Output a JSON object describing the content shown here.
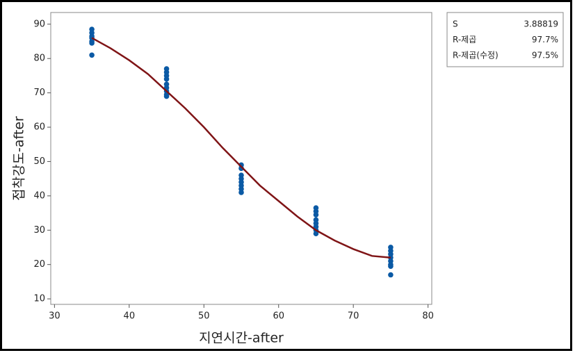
{
  "chart_data": {
    "type": "scatter",
    "x_label": "지연시간-after",
    "y_label": "접착강도-after",
    "xlim": [
      29.5,
      80.5
    ],
    "ylim": [
      8.4,
      93.4
    ],
    "xticks": [
      30,
      40,
      50,
      60,
      70,
      80
    ],
    "yticks": [
      10,
      20,
      30,
      40,
      50,
      60,
      70,
      80,
      90
    ],
    "series": [
      {
        "type": "scatter",
        "color": "#0b5aa5",
        "x": [
          35,
          35,
          35,
          35,
          35,
          35,
          35,
          45,
          45,
          45,
          45,
          45,
          45,
          45,
          45,
          45,
          55,
          55,
          55,
          55,
          55,
          55,
          55,
          55,
          65,
          65,
          65,
          65,
          65,
          65,
          65,
          65,
          75,
          75,
          75,
          75,
          75,
          75,
          75,
          75
        ],
        "values": [
          88.5,
          87.5,
          86.5,
          86,
          85,
          84.5,
          81,
          77,
          76,
          75,
          74,
          72.5,
          71.5,
          70.5,
          69.5,
          69,
          49,
          48,
          46,
          45,
          44,
          43,
          42,
          41,
          36.5,
          35.5,
          34.5,
          33,
          32,
          31,
          30,
          29,
          25,
          24,
          23,
          22,
          21,
          20,
          19.5,
          17
        ]
      },
      {
        "type": "line",
        "color": "#7f1416",
        "x": [
          35,
          37.5,
          40,
          42.5,
          45,
          47.5,
          50,
          52.5,
          55,
          57.5,
          60,
          62.5,
          65,
          67.5,
          70,
          72.5,
          75
        ],
        "values": [
          86,
          83,
          79.5,
          75.5,
          70.5,
          65.5,
          60,
          54,
          48.5,
          43,
          38.5,
          34,
          30,
          27,
          24.5,
          22.5,
          22
        ]
      }
    ],
    "stats": [
      {
        "label": "S",
        "value": "3.88819"
      },
      {
        "label": "R-제곱",
        "value": "97.7%"
      },
      {
        "label": "R-제곱(수정)",
        "value": "97.5%"
      }
    ]
  }
}
